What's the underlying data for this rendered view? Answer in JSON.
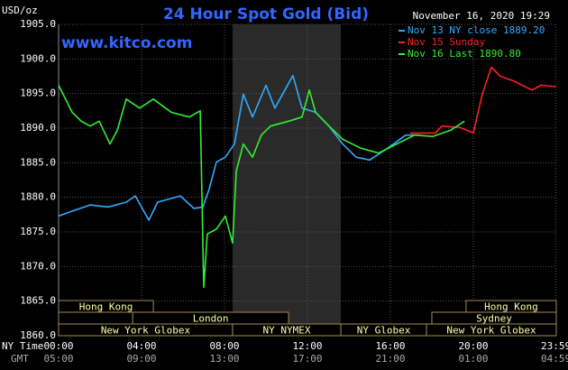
{
  "chart_data": {
    "type": "line",
    "title": "24 Hour Spot Gold (Bid)",
    "y_label": "USD/oz",
    "watermark": "www.kitco.com",
    "timestamp": "November 16, 2020 19:29",
    "x_label": "NY Time",
    "x2_label": "GMT",
    "xlim": [
      0,
      24
    ],
    "xticks": [
      {
        "value": 0,
        "label": "00:00"
      },
      {
        "value": 4,
        "label": "04:00"
      },
      {
        "value": 8,
        "label": "08:00"
      },
      {
        "value": 12,
        "label": "12:00"
      },
      {
        "value": 16,
        "label": "16:00"
      },
      {
        "value": 20,
        "label": "20:00"
      },
      {
        "value": 23.98,
        "label": "23:59"
      }
    ],
    "x2ticks": [
      "05:00",
      "09:00",
      "13:00",
      "17:00",
      "21:00",
      "01:00",
      "04:59"
    ],
    "ylim": [
      1860,
      1905
    ],
    "yticks": [
      {
        "value": 1860,
        "label": "1860.0"
      },
      {
        "value": 1865,
        "label": "1865.0"
      },
      {
        "value": 1870,
        "label": "1870.0"
      },
      {
        "value": 1875,
        "label": "1875.0"
      },
      {
        "value": 1880,
        "label": "1880.0"
      },
      {
        "value": 1885,
        "label": "1885.0"
      },
      {
        "value": 1890,
        "label": "1890.0"
      },
      {
        "value": 1895,
        "label": "1895.0"
      },
      {
        "value": 1900,
        "label": "1900.0"
      },
      {
        "value": 1905,
        "label": "1905.0"
      }
    ],
    "grid": true,
    "legend": "top-right",
    "sessions": [
      {
        "label": "Hong Kong",
        "start": 0,
        "end": 4.57,
        "row": 0
      },
      {
        "label": "Hong Kong",
        "start": 19.65,
        "end": 24,
        "row": 0
      },
      {
        "label": "London",
        "start": 3.57,
        "end": 11.09,
        "row": 1
      },
      {
        "label": "Sydney",
        "start": 18.0,
        "end": 24,
        "row": 1
      },
      {
        "label": "New York Globex",
        "start": 0,
        "end": 8.39,
        "row": 2
      },
      {
        "label": "NY NYMEX",
        "start": 8.39,
        "end": 13.61,
        "row": 2
      },
      {
        "label": "NY Globex",
        "start": 13.61,
        "end": 17.74,
        "row": 2
      },
      {
        "label": "New York Globex",
        "start": 17.74,
        "end": 24,
        "row": 2
      }
    ],
    "series": [
      {
        "name": "Nov 13 NY close 1889.20",
        "color": "#33aaff",
        "x": [
          0,
          0.65,
          1.52,
          2.39,
          3.26,
          3.7,
          4.35,
          4.78,
          5.87,
          6.52,
          6.96,
          7.26,
          7.61,
          8.04,
          8.48,
          8.91,
          9.35,
          10.0,
          10.43,
          11.3,
          11.74,
          12.39,
          13.04,
          13.7,
          14.35,
          15.0,
          15.87,
          16.74,
          17.39
        ],
        "values": [
          1877.3,
          1878.0,
          1878.9,
          1878.6,
          1879.3,
          1880.2,
          1876.7,
          1879.3,
          1880.2,
          1878.4,
          1878.6,
          1881.2,
          1885.1,
          1885.8,
          1887.7,
          1894.9,
          1891.6,
          1896.2,
          1892.9,
          1897.6,
          1892.9,
          1892.3,
          1890.3,
          1887.7,
          1885.8,
          1885.4,
          1887.1,
          1889.0,
          1889.0
        ]
      },
      {
        "name": "Nov 15 Sunday",
        "color": "#ff2020",
        "x": [
          16.96,
          18.17,
          18.48,
          19.35,
          20.0,
          20.43,
          20.87,
          21.3,
          21.96,
          22.83,
          23.26,
          24.0
        ],
        "values": [
          1889.3,
          1889.3,
          1890.3,
          1890.1,
          1889.3,
          1894.9,
          1898.8,
          1897.5,
          1896.8,
          1895.5,
          1896.2,
          1896.0
        ]
      },
      {
        "name": "Nov 16 Last 1890.80",
        "color": "#33ee33",
        "x": [
          0,
          0.65,
          1.09,
          1.52,
          1.96,
          2.48,
          2.83,
          3.26,
          3.91,
          4.57,
          5.43,
          6.3,
          6.83,
          7.0,
          7.17,
          7.61,
          8.04,
          8.39,
          8.57,
          8.91,
          9.35,
          9.78,
          10.22,
          11.09,
          11.74,
          12.09,
          12.39,
          13.04,
          13.7,
          14.57,
          15.43,
          16.3,
          17.17,
          18.04,
          18.91,
          19.57
        ],
        "values": [
          1896.2,
          1892.3,
          1891.0,
          1890.3,
          1891.0,
          1887.7,
          1889.7,
          1894.2,
          1892.9,
          1894.2,
          1892.3,
          1891.6,
          1892.5,
          1867.0,
          1874.7,
          1875.4,
          1877.3,
          1873.4,
          1883.8,
          1887.7,
          1885.8,
          1889.0,
          1890.3,
          1891.0,
          1891.6,
          1895.5,
          1892.3,
          1890.3,
          1888.4,
          1887.1,
          1886.4,
          1887.7,
          1889.0,
          1888.8,
          1889.7,
          1891.0
        ]
      }
    ]
  }
}
